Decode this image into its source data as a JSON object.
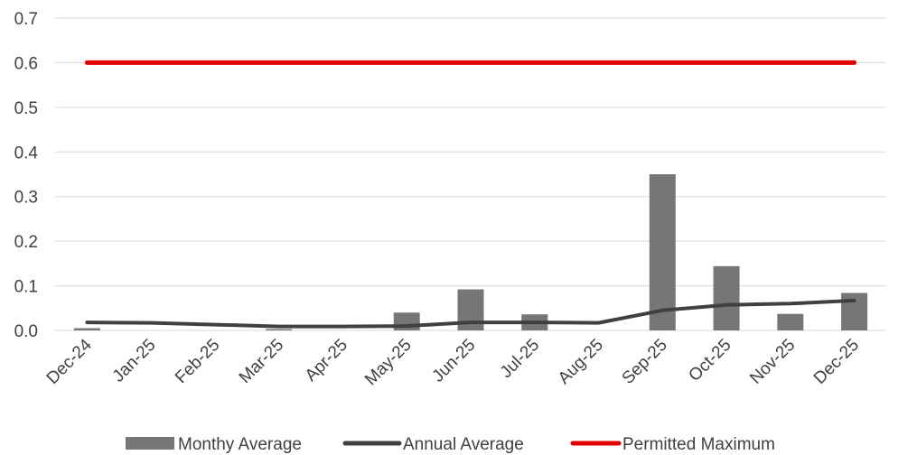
{
  "chart_data": {
    "type": "bar",
    "title": "",
    "xlabel": "",
    "ylabel": "",
    "categories": [
      "Dec-24",
      "Jan-25",
      "Feb-25",
      "Mar-25",
      "Apr-25",
      "May-25",
      "Jun-25",
      "Jul-25",
      "Aug-25",
      "Sep-25",
      "Oct-25",
      "Nov-25",
      "Dec-25"
    ],
    "ylim": [
      0,
      0.7
    ],
    "yticks": [
      "0.0",
      "0.1",
      "0.2",
      "0.3",
      "0.4",
      "0.5",
      "0.6",
      "0.7"
    ],
    "grid": true,
    "legend_position": "bottom",
    "series": [
      {
        "name": "Monthy Average",
        "type": "bar",
        "color": "#767676",
        "values": [
          0.005,
          0,
          0,
          0.003,
          0,
          0.04,
          0.092,
          0.036,
          0,
          0.35,
          0.144,
          0.037,
          0.084
        ]
      },
      {
        "name": "Annual Average",
        "type": "line",
        "color": "#404040",
        "values": [
          0.018,
          0.017,
          0.013,
          0.009,
          0.009,
          0.01,
          0.018,
          0.018,
          0.017,
          0.045,
          0.057,
          0.06,
          0.067
        ]
      },
      {
        "name": "Permitted Maximum",
        "type": "line",
        "color": "#e00000",
        "values": [
          0.6,
          0.6,
          0.6,
          0.6,
          0.6,
          0.6,
          0.6,
          0.6,
          0.6,
          0.6,
          0.6,
          0.6,
          0.6
        ]
      }
    ]
  }
}
